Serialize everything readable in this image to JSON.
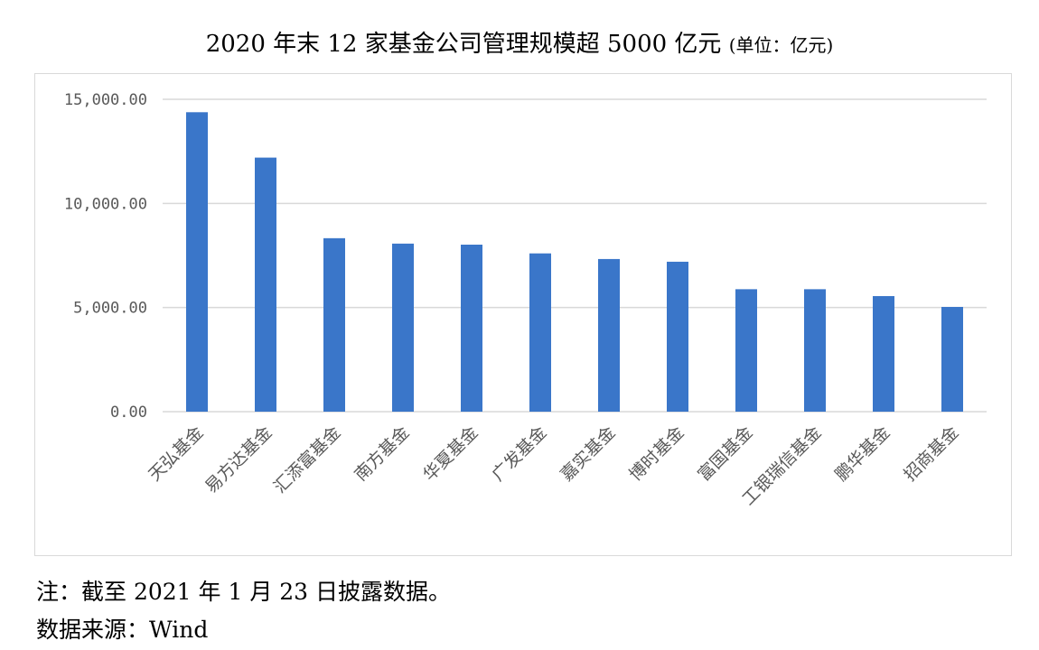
{
  "title_main": "2020 年末 12 家基金公司管理规模超 5000 亿元",
  "title_unit": "(单位：亿元)",
  "notes": {
    "note": "注：截至 2021 年 1 月 23 日披露数据。",
    "source": "数据来源：Wind"
  },
  "colors": {
    "bar": "#3a76c9",
    "grid": "#d9d9d9"
  },
  "chart_data": {
    "type": "bar",
    "title": "2020 年末 12 家基金公司管理规模超 5000 亿元 (单位：亿元)",
    "categories": [
      "天弘基金",
      "易方达基金",
      "汇添富基金",
      "南方基金",
      "华夏基金",
      "广发基金",
      "嘉实基金",
      "博时基金",
      "富国基金",
      "工银瑞信基金",
      "鹏华基金",
      "招商基金"
    ],
    "values": [
      14380,
      12200,
      8330,
      8070,
      8020,
      7600,
      7330,
      7200,
      5880,
      5880,
      5550,
      5030
    ],
    "yticks": [
      "0.00",
      "5,000.00",
      "10,000.00",
      "15,000.00"
    ],
    "ylim": [
      0,
      15000
    ],
    "grid": true,
    "legend": "none"
  }
}
